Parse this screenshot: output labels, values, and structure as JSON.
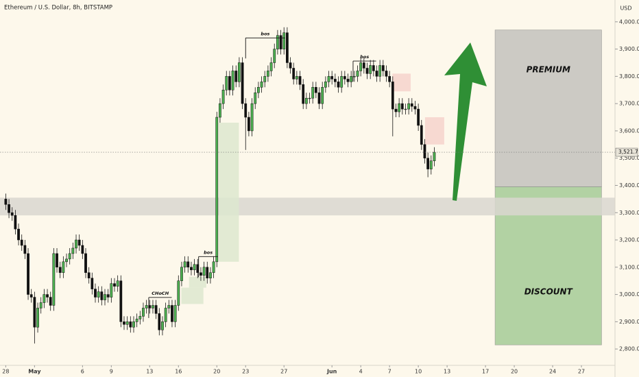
{
  "chart_data": {
    "type": "candlestick",
    "title": "Ethereum / U.S. Dollar, 8h, BITSTAMP",
    "currency": "USD",
    "candles_per_day": 3,
    "xlim": [
      -0.6,
      63.5
    ],
    "ylim": [
      2740,
      4080
    ],
    "up_color": "#4caf50",
    "down_color": "#111111",
    "yticks": [
      {
        "value": 2800,
        "label": "2,800.0"
      },
      {
        "value": 2900,
        "label": "2,900.0"
      },
      {
        "value": 3000,
        "label": "3,000.0"
      },
      {
        "value": 3100,
        "label": "3,100.0"
      },
      {
        "value": 3200,
        "label": "3,200.0"
      },
      {
        "value": 3300,
        "label": "3,300.0"
      },
      {
        "value": 3400,
        "label": "3,400.0"
      },
      {
        "value": 3500,
        "label": "3,500.0"
      },
      {
        "value": 3600,
        "label": "3,600.0"
      },
      {
        "value": 3700,
        "label": "3,700.0"
      },
      {
        "value": 3800,
        "label": "3,800.0"
      },
      {
        "value": 3900,
        "label": "3,900.0"
      },
      {
        "value": 4000,
        "label": "4,000.0"
      }
    ],
    "xticks": [
      {
        "value": 0,
        "label": "28"
      },
      {
        "value": 3,
        "label": "May"
      },
      {
        "value": 8,
        "label": "6"
      },
      {
        "value": 11,
        "label": "9"
      },
      {
        "value": 15,
        "label": "13"
      },
      {
        "value": 18,
        "label": "16"
      },
      {
        "value": 22,
        "label": "20"
      },
      {
        "value": 25,
        "label": "23"
      },
      {
        "value": 29,
        "label": "27"
      },
      {
        "value": 34,
        "label": "Jun"
      },
      {
        "value": 37,
        "label": "4"
      },
      {
        "value": 40,
        "label": "7"
      },
      {
        "value": 43,
        "label": "10"
      },
      {
        "value": 46,
        "label": "13"
      },
      {
        "value": 50,
        "label": "17"
      },
      {
        "value": 53,
        "label": "20"
      },
      {
        "value": 57,
        "label": "24"
      },
      {
        "value": 60,
        "label": "27"
      }
    ],
    "open": [
      3350,
      3330,
      3300,
      3290,
      3240,
      3200,
      3180,
      3150,
      3000,
      2990,
      2880,
      2950,
      2970,
      3000,
      2990,
      2960,
      3150,
      3100,
      3080,
      3120,
      3130,
      3150,
      3170,
      3200,
      3180,
      3150,
      3080,
      3060,
      3020,
      2990,
      3010,
      2980,
      3000,
      2990,
      3040,
      3030,
      3050,
      2900,
      2890,
      2900,
      2880,
      2900,
      2910,
      2920,
      2950,
      2960,
      2950,
      2960,
      2930,
      2870,
      2900,
      2950,
      2960,
      2900,
      2960,
      3050,
      3100,
      3120,
      3100,
      3090,
      3110,
      3080,
      3070,
      3100,
      3060,
      3080,
      3120,
      3650,
      3700,
      3750,
      3800,
      3750,
      3820,
      3780,
      3850,
      3700,
      3650,
      3600,
      3700,
      3740,
      3760,
      3780,
      3800,
      3820,
      3850,
      3900,
      3950,
      3900,
      3960,
      3850,
      3830,
      3790,
      3800,
      3770,
      3700,
      3720,
      3720,
      3760,
      3740,
      3700,
      3760,
      3780,
      3800,
      3790,
      3780,
      3760,
      3800,
      3790,
      3780,
      3800,
      3800,
      3820,
      3850,
      3830,
      3810,
      3840,
      3820,
      3800,
      3840,
      3820,
      3800,
      3780,
      3680,
      3670,
      3700,
      3680,
      3680,
      3700,
      3690,
      3680,
      3620,
      3550,
      3500,
      3460,
      3490
    ],
    "high": [
      3370,
      3350,
      3320,
      3310,
      3260,
      3220,
      3200,
      3170,
      3020,
      3010,
      2970,
      2990,
      3020,
      3020,
      3010,
      3170,
      3170,
      3120,
      3140,
      3150,
      3170,
      3190,
      3220,
      3220,
      3200,
      3170,
      3100,
      3080,
      3040,
      3030,
      3030,
      3020,
      3020,
      3060,
      3060,
      3070,
      3070,
      2920,
      2920,
      2920,
      2920,
      2930,
      2940,
      2970,
      2980,
      2980,
      2980,
      2980,
      2950,
      2920,
      2970,
      2980,
      2980,
      2980,
      3070,
      3120,
      3140,
      3140,
      3120,
      3130,
      3130,
      3100,
      3120,
      3120,
      3100,
      3140,
      3670,
      3720,
      3770,
      3820,
      3820,
      3840,
      3840,
      3870,
      3870,
      3720,
      3670,
      3720,
      3760,
      3780,
      3800,
      3820,
      3840,
      3870,
      3920,
      3970,
      3970,
      3980,
      3980,
      3870,
      3850,
      3820,
      3820,
      3790,
      3740,
      3740,
      3780,
      3780,
      3760,
      3780,
      3800,
      3820,
      3820,
      3810,
      3800,
      3820,
      3820,
      3810,
      3820,
      3820,
      3840,
      3870,
      3870,
      3850,
      3860,
      3860,
      3840,
      3860,
      3860,
      3840,
      3820,
      3800,
      3700,
      3720,
      3720,
      3700,
      3720,
      3720,
      3710,
      3700,
      3640,
      3570,
      3520,
      3510,
      3540
    ],
    "low": [
      3310,
      3280,
      3270,
      3220,
      3180,
      3160,
      3130,
      2980,
      2970,
      2820,
      2860,
      2930,
      2950,
      2970,
      2940,
      2940,
      3080,
      3060,
      3060,
      3100,
      3110,
      3130,
      3150,
      3160,
      3130,
      3060,
      3040,
      3000,
      2970,
      2970,
      2960,
      2960,
      2970,
      2970,
      3010,
      3010,
      2880,
      2870,
      2870,
      2860,
      2860,
      2880,
      2890,
      2900,
      2930,
      2930,
      2930,
      2910,
      2850,
      2850,
      2880,
      2930,
      2880,
      2880,
      2940,
      3030,
      3080,
      3080,
      3070,
      3070,
      3060,
      3050,
      3050,
      3040,
      3040,
      3060,
      3100,
      3630,
      3680,
      3730,
      3730,
      3730,
      3760,
      3760,
      3680,
      3530,
      3580,
      3580,
      3680,
      3720,
      3740,
      3760,
      3780,
      3800,
      3830,
      3880,
      3880,
      3880,
      3830,
      3810,
      3770,
      3770,
      3750,
      3680,
      3680,
      3700,
      3700,
      3720,
      3680,
      3680,
      3740,
      3760,
      3770,
      3760,
      3740,
      3740,
      3770,
      3760,
      3760,
      3780,
      3780,
      3800,
      3810,
      3790,
      3790,
      3800,
      3780,
      3780,
      3800,
      3780,
      3760,
      3580,
      3650,
      3650,
      3660,
      3660,
      3660,
      3670,
      3660,
      3600,
      3530,
      3480,
      3430,
      3440,
      3470
    ],
    "close": [
      3330,
      3300,
      3290,
      3240,
      3200,
      3180,
      3150,
      3000,
      2990,
      2880,
      2950,
      2970,
      3000,
      2990,
      2960,
      3150,
      3100,
      3080,
      3120,
      3130,
      3150,
      3170,
      3200,
      3180,
      3150,
      3080,
      3060,
      3020,
      2990,
      3010,
      2980,
      3000,
      2990,
      3040,
      3030,
      3050,
      2900,
      2890,
      2900,
      2880,
      2900,
      2910,
      2920,
      2950,
      2960,
      2950,
      2960,
      2930,
      2870,
      2900,
      2950,
      2960,
      2900,
      2960,
      3050,
      3100,
      3120,
      3100,
      3090,
      3110,
      3080,
      3070,
      3100,
      3060,
      3080,
      3120,
      3650,
      3700,
      3750,
      3800,
      3750,
      3820,
      3780,
      3850,
      3700,
      3650,
      3600,
      3700,
      3740,
      3760,
      3780,
      3800,
      3820,
      3850,
      3900,
      3950,
      3900,
      3960,
      3850,
      3830,
      3790,
      3800,
      3770,
      3700,
      3720,
      3720,
      3760,
      3740,
      3700,
      3760,
      3780,
      3800,
      3790,
      3780,
      3760,
      3800,
      3790,
      3780,
      3800,
      3800,
      3820,
      3850,
      3830,
      3810,
      3840,
      3820,
      3800,
      3840,
      3820,
      3800,
      3780,
      3680,
      3670,
      3700,
      3680,
      3680,
      3700,
      3690,
      3680,
      3620,
      3550,
      3500,
      3460,
      3490,
      3521.7
    ],
    "price_label": {
      "value": 3521.7,
      "label": "3,521.7"
    },
    "zones": [
      {
        "name": "PREMIUM",
        "xlim": [
          51,
          62.1
        ],
        "ylim": [
          3395,
          3970
        ],
        "color": "#c4c2be"
      },
      {
        "name": "DISCOUNT",
        "xlim": [
          51,
          62.1
        ],
        "ylim": [
          2815,
          3395
        ],
        "color": "#a5cc97"
      },
      {
        "xlim": [
          -0.6,
          63.5
        ],
        "ylim": [
          3290,
          3355
        ],
        "color": "#d9d7d0"
      },
      {
        "xlim": [
          22.2,
          24.3
        ],
        "ylim": [
          3120,
          3630
        ],
        "color": "#dde8cf"
      },
      {
        "xlim": [
          19.1,
          20.9
        ],
        "ylim": [
          3025,
          3065
        ],
        "color": "#dde8cf"
      },
      {
        "xlim": [
          18.3,
          20.6
        ],
        "ylim": [
          2965,
          3025
        ],
        "color": "#dde8cf"
      },
      {
        "xlim": [
          40.3,
          42.2
        ],
        "ylim": [
          3745,
          3810
        ],
        "color": "#f6d3cc"
      },
      {
        "xlim": [
          43.7,
          45.7
        ],
        "ylim": [
          3550,
          3650
        ],
        "color": "#f6d3cc"
      }
    ],
    "annotations": [
      {
        "text": "bos",
        "xlim": [
          25,
          29.1
        ],
        "y": 3941
      },
      {
        "text": "bos",
        "xlim": [
          36.2,
          38.6
        ],
        "y": 3856
      },
      {
        "text": "bos",
        "xlim": [
          20.1,
          22.1
        ],
        "y": 3139
      },
      {
        "text": "CHoCH",
        "xlim": [
          14.9,
          17.3
        ],
        "y": 2989
      }
    ]
  }
}
